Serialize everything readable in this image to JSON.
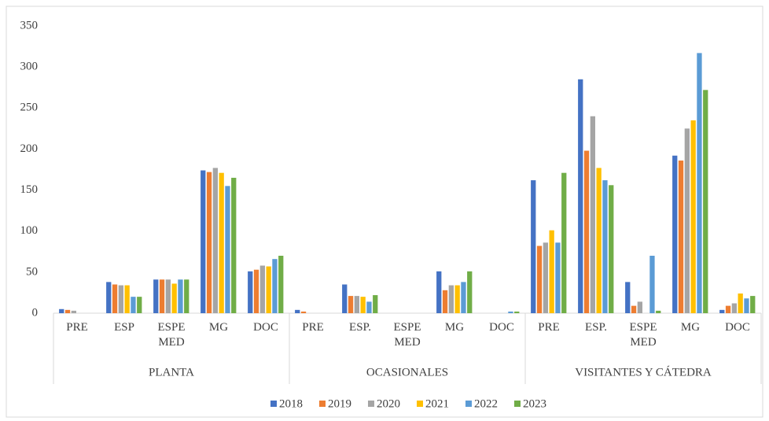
{
  "chart_data": {
    "type": "bar",
    "groups": [
      {
        "name": "PLANTA",
        "categories": [
          "PRE",
          "ESP",
          "ESPE MED",
          "MG",
          "DOC"
        ]
      },
      {
        "name": "OCASIONALES",
        "categories": [
          "PRE",
          "ESP.",
          "ESPE MED",
          "MG",
          "DOC"
        ]
      },
      {
        "name": "VISITANTES Y CÁTEDRA",
        "categories": [
          "PRE",
          "ESP.",
          "ESPE MED",
          "MG",
          "DOC"
        ]
      }
    ],
    "series": [
      {
        "name": "2018",
        "color": "#4472c4",
        "values": [
          5,
          38,
          41,
          174,
          51,
          4,
          35,
          0,
          51,
          0,
          162,
          285,
          38,
          192,
          4
        ]
      },
      {
        "name": "2019",
        "color": "#ed7d31",
        "values": [
          4,
          35,
          41,
          172,
          53,
          2,
          21,
          0,
          28,
          0,
          82,
          198,
          9,
          186,
          9
        ]
      },
      {
        "name": "2020",
        "color": "#a5a5a5",
        "values": [
          3,
          34,
          41,
          177,
          58,
          0,
          21,
          0,
          34,
          0,
          86,
          240,
          14,
          225,
          12
        ]
      },
      {
        "name": "2021",
        "color": "#ffc000",
        "values": [
          0,
          34,
          36,
          171,
          57,
          0,
          20,
          0,
          34,
          0,
          101,
          177,
          0,
          235,
          24
        ]
      },
      {
        "name": "2022",
        "color": "#5b9bd5",
        "values": [
          0,
          20,
          41,
          155,
          66,
          0,
          14,
          0,
          38,
          2,
          86,
          162,
          70,
          317,
          18
        ]
      },
      {
        "name": "2023",
        "color": "#70ad47",
        "values": [
          0,
          20,
          41,
          165,
          70,
          0,
          22,
          0,
          51,
          2,
          171,
          156,
          3,
          272,
          21
        ]
      }
    ],
    "ylim": [
      0,
      350
    ],
    "yticks": [
      0,
      50,
      100,
      150,
      200,
      250,
      300,
      350
    ],
    "legend": "bottom"
  }
}
